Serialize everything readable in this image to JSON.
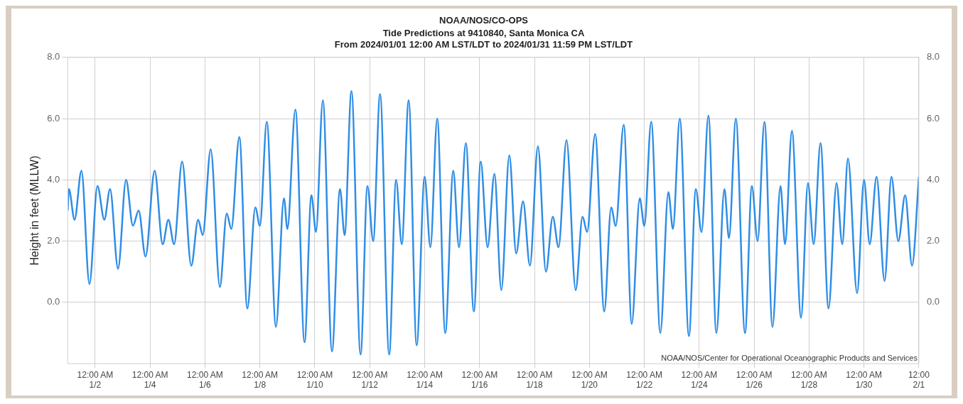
{
  "chart_data": {
    "type": "line",
    "title": "NOAA/NOS/CO-OPS",
    "subtitle": "Tide Predictions at 9410840, Santa Monica CA\nFrom 2024/01/01 12:00 AM LST/LDT to 2024/01/31 11:59 PM LST/LDT",
    "ylabel": "Height in feet (MLLW)",
    "annotations": [
      "NOAA/NOS/Center for Operational Oceanographic Products and Services"
    ],
    "x": [
      "2024-01-01T00:00",
      "2024-01-01T01:00",
      "2024-01-01T06:00",
      "2024-01-01T12:00",
      "2024-01-01T19:00",
      "2024-01-02T02:00",
      "2024-01-02T08:00",
      "2024-01-02T13:00",
      "2024-01-02T20:00",
      "2024-01-03T03:00",
      "2024-01-03T09:00",
      "2024-01-03T14:00",
      "2024-01-03T20:00",
      "2024-01-04T04:00",
      "2024-01-04T11:00",
      "2024-01-04T16:00",
      "2024-01-04T21:00",
      "2024-01-05T04:00",
      "2024-01-05T12:00",
      "2024-01-05T18:00",
      "2024-01-05T22:00",
      "2024-01-06T05:00",
      "2024-01-06T13:00",
      "2024-01-06T19:00",
      "2024-01-06T23:00",
      "2024-01-07T06:00",
      "2024-01-07T13:00",
      "2024-01-07T20:00",
      "2024-01-08T00:00",
      "2024-01-08T06:00",
      "2024-01-08T14:00",
      "2024-01-08T21:00",
      "2024-01-09T00:00",
      "2024-01-09T07:00",
      "2024-01-09T15:00",
      "2024-01-09T21:00",
      "2024-01-10T01:00",
      "2024-01-10T07:00",
      "2024-01-10T15:00",
      "2024-01-10T22:00",
      "2024-01-11T02:00",
      "2024-01-11T08:00",
      "2024-01-11T16:00",
      "2024-01-11T22:00",
      "2024-01-12T03:00",
      "2024-01-12T09:00",
      "2024-01-12T17:00",
      "2024-01-12T23:00",
      "2024-01-13T04:00",
      "2024-01-13T10:00",
      "2024-01-13T17:00",
      "2024-01-14T00:00",
      "2024-01-14T05:00",
      "2024-01-14T11:00",
      "2024-01-14T18:00",
      "2024-01-15T01:00",
      "2024-01-15T06:00",
      "2024-01-15T12:00",
      "2024-01-15T19:00",
      "2024-01-16T01:00",
      "2024-01-16T07:00",
      "2024-01-16T13:00",
      "2024-01-16T19:00",
      "2024-01-17T02:00",
      "2024-01-17T08:00",
      "2024-01-17T14:00",
      "2024-01-17T20:00",
      "2024-01-18T03:00",
      "2024-01-18T10:00",
      "2024-01-18T16:00",
      "2024-01-18T21:00",
      "2024-01-19T04:00",
      "2024-01-19T12:00",
      "2024-01-19T18:00",
      "2024-01-19T22:00",
      "2024-01-20T05:00",
      "2024-01-20T13:00",
      "2024-01-20T19:00",
      "2024-01-20T23:00",
      "2024-01-21T06:00",
      "2024-01-21T13:00",
      "2024-01-21T20:00",
      "2024-01-22T00:00",
      "2024-01-22T06:00",
      "2024-01-22T14:00",
      "2024-01-22T21:00",
      "2024-01-23T01:00",
      "2024-01-23T07:00",
      "2024-01-23T15:00",
      "2024-01-23T21:00",
      "2024-01-24T02:00",
      "2024-01-24T08:00",
      "2024-01-24T15:00",
      "2024-01-24T22:00",
      "2024-01-25T02:00",
      "2024-01-25T08:00",
      "2024-01-25T16:00",
      "2024-01-25T22:00",
      "2024-01-26T03:00",
      "2024-01-26T09:00",
      "2024-01-26T16:00",
      "2024-01-26T23:00",
      "2024-01-27T03:00",
      "2024-01-27T09:00",
      "2024-01-27T17:00",
      "2024-01-27T23:00",
      "2024-01-28T04:00",
      "2024-01-28T10:00",
      "2024-01-28T17:00",
      "2024-01-29T00:00",
      "2024-01-29T05:00",
      "2024-01-29T10:00",
      "2024-01-29T18:00",
      "2024-01-30T00:00",
      "2024-01-30T05:00",
      "2024-01-30T11:00",
      "2024-01-30T18:00",
      "2024-01-31T00:00",
      "2024-01-31T06:00",
      "2024-01-31T12:00",
      "2024-01-31T18:00",
      "2024-01-31T23:59"
    ],
    "series": [
      {
        "color": "#2e8de6",
        "values": [
          3.0,
          3.7,
          2.7,
          4.3,
          0.6,
          3.8,
          2.7,
          3.7,
          1.1,
          4.0,
          2.5,
          3.0,
          1.5,
          4.3,
          1.9,
          2.7,
          1.9,
          4.6,
          1.2,
          2.7,
          2.2,
          5.0,
          0.5,
          2.9,
          2.4,
          5.4,
          -0.2,
          3.1,
          2.5,
          5.9,
          -0.8,
          3.4,
          2.4,
          6.3,
          -1.3,
          3.5,
          2.3,
          6.6,
          -1.6,
          3.7,
          2.2,
          6.9,
          -1.7,
          3.8,
          2.0,
          6.8,
          -1.7,
          4.0,
          1.9,
          6.6,
          -1.4,
          4.1,
          1.8,
          6.0,
          -1.0,
          4.3,
          1.8,
          5.2,
          -0.3,
          4.6,
          1.8,
          4.2,
          0.4,
          4.8,
          1.6,
          3.3,
          1.2,
          5.1,
          1.0,
          2.8,
          1.8,
          5.3,
          0.4,
          2.8,
          2.3,
          5.5,
          -0.3,
          3.1,
          2.5,
          5.8,
          -0.7,
          3.4,
          2.5,
          5.9,
          -1.0,
          3.6,
          2.4,
          6.0,
          -1.1,
          3.7,
          2.3,
          6.1,
          -1.0,
          3.7,
          2.1,
          6.0,
          -1.0,
          3.8,
          2.0,
          5.9,
          -0.8,
          3.8,
          1.9,
          5.6,
          -0.5,
          3.9,
          1.9,
          5.2,
          -0.2,
          3.9,
          1.9,
          4.7,
          0.3,
          4.0,
          1.9,
          4.1,
          0.7,
          4.1,
          2.0,
          3.5,
          1.2,
          4.1
        ]
      }
    ],
    "xlim": [
      "2024-01-01T00:00",
      "2024-01-31T23:59"
    ],
    "xticks": [
      {
        "value": "2024-01-02T00:00",
        "label": "12:00 AM\n1/2"
      },
      {
        "value": "2024-01-04T00:00",
        "label": "12:00 AM\n1/4"
      },
      {
        "value": "2024-01-06T00:00",
        "label": "12:00 AM\n1/6"
      },
      {
        "value": "2024-01-08T00:00",
        "label": "12:00 AM\n1/8"
      },
      {
        "value": "2024-01-10T00:00",
        "label": "12:00 AM\n1/10"
      },
      {
        "value": "2024-01-12T00:00",
        "label": "12:00 AM\n1/12"
      },
      {
        "value": "2024-01-14T00:00",
        "label": "12:00 AM\n1/14"
      },
      {
        "value": "2024-01-16T00:00",
        "label": "12:00 AM\n1/16"
      },
      {
        "value": "2024-01-18T00:00",
        "label": "12:00 AM\n1/18"
      },
      {
        "value": "2024-01-20T00:00",
        "label": "12:00 AM\n1/20"
      },
      {
        "value": "2024-01-22T00:00",
        "label": "12:00 AM\n1/22"
      },
      {
        "value": "2024-01-24T00:00",
        "label": "12:00 AM\n1/24"
      },
      {
        "value": "2024-01-26T00:00",
        "label": "12:00 AM\n1/26"
      },
      {
        "value": "2024-01-28T00:00",
        "label": "12:00 AM\n1/28"
      },
      {
        "value": "2024-01-30T00:00",
        "label": "12:00 AM\n1/30"
      },
      {
        "value": "2024-01-31T23:59",
        "label": "12:00\n2/1"
      }
    ],
    "ylim": [
      -2,
      8
    ],
    "yticks": [
      {
        "value": 0,
        "label": "0.0"
      },
      {
        "value": 2,
        "label": "2.0"
      },
      {
        "value": 4,
        "label": "4.0"
      },
      {
        "value": 6,
        "label": "6.0"
      },
      {
        "value": 8,
        "label": "8.0"
      }
    ],
    "y2lim": [
      -2,
      8
    ],
    "y2ticks": [
      {
        "value": 0,
        "label": "0.0"
      },
      {
        "value": 2,
        "label": "2.0"
      },
      {
        "value": 4,
        "label": "4.0"
      },
      {
        "value": 6,
        "label": "6.0"
      },
      {
        "value": 8,
        "label": "8.0"
      }
    ],
    "grid": true,
    "legend": false
  }
}
